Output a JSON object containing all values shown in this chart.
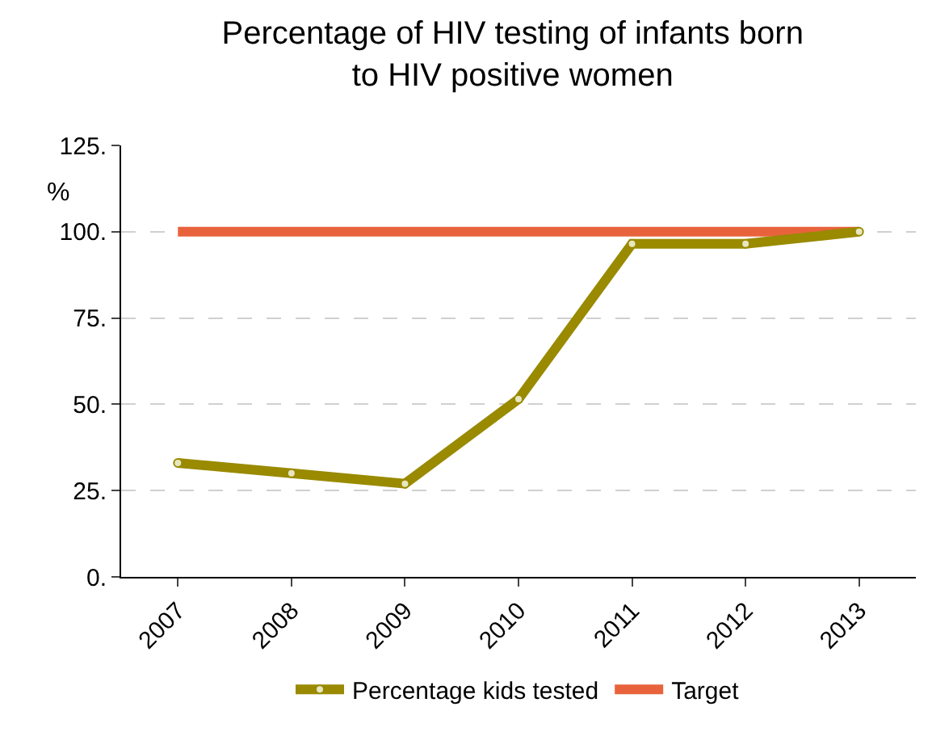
{
  "chart_data": {
    "type": "line",
    "title": "Percentage of HIV testing of infants born\nto HIV positive women",
    "ylabel": "%",
    "categories": [
      "2007",
      "2008",
      "2009",
      "2010",
      "2011",
      "2012",
      "2013"
    ],
    "series": [
      {
        "name": "Percentage kids tested",
        "color": "#998a00",
        "values": [
          33,
          30,
          27,
          51.5,
          96.5,
          96.5,
          100
        ],
        "marker": "circle"
      },
      {
        "name": "Target",
        "color": "#e8633c",
        "values": [
          100,
          100,
          100,
          100,
          100,
          100,
          100
        ],
        "marker": "none"
      }
    ],
    "ylim": [
      0,
      125
    ],
    "yticks": [
      {
        "value": 0,
        "label": "0."
      },
      {
        "value": 25,
        "label": "25."
      },
      {
        "value": 50,
        "label": "50."
      },
      {
        "value": 75,
        "label": "75."
      },
      {
        "value": 100,
        "label": "100."
      },
      {
        "value": 125,
        "label": "125."
      }
    ],
    "grid": "y",
    "legend": "bottom",
    "line_style": "solid"
  }
}
